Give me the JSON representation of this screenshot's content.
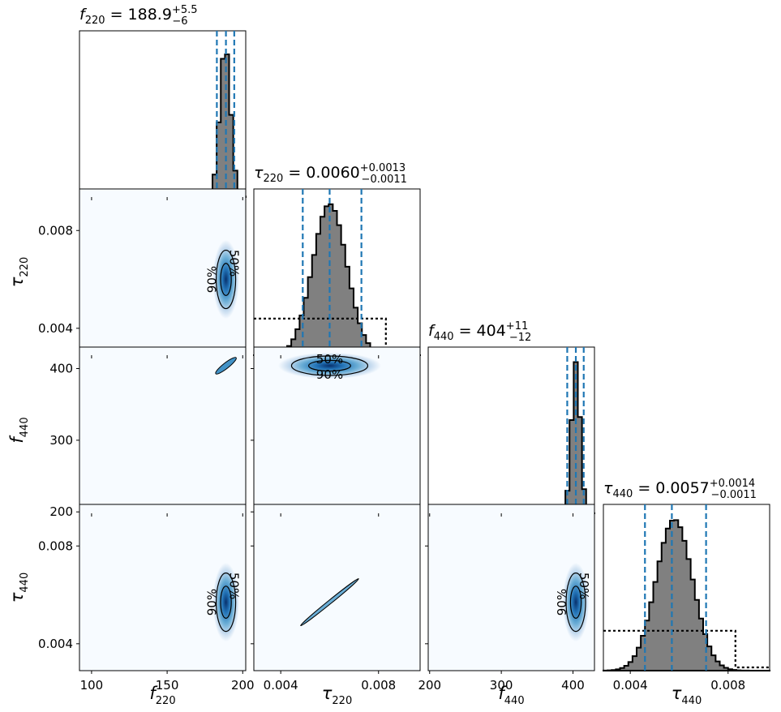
{
  "chart_data": {
    "type": "corner",
    "parameters": [
      {
        "key": "f220",
        "symbol": "f",
        "subscript": "220",
        "range": [
          92,
          202
        ],
        "ticks": [
          "100",
          "150",
          "200"
        ],
        "tick_values": [
          100,
          150,
          200
        ],
        "summary": {
          "median": "188.9",
          "plus": "+5.5",
          "minus": "−6"
        },
        "quantiles": [
          182.9,
          188.9,
          194.4
        ]
      },
      {
        "key": "tau220",
        "symbol": "τ",
        "subscript": "220",
        "range": [
          0.0029,
          0.0097
        ],
        "ticks": [
          "0.004",
          "0.008"
        ],
        "tick_values": [
          0.004,
          0.008
        ],
        "summary": {
          "median": "0.0060",
          "plus": "+0.0013",
          "minus": "−0.0011"
        },
        "quantiles": [
          0.0049,
          0.006,
          0.0073
        ]
      },
      {
        "key": "f440",
        "symbol": "f",
        "subscript": "440",
        "range": [
          198,
          430
        ],
        "ticks": [
          "200",
          "300",
          "400"
        ],
        "tick_values": [
          200,
          300,
          400
        ],
        "summary": {
          "median": "404",
          "plus": "+11",
          "minus": "−12"
        },
        "quantiles": [
          392,
          404,
          415
        ]
      },
      {
        "key": "tau440",
        "symbol": "τ",
        "subscript": "440",
        "range": [
          0.0029,
          0.0097
        ],
        "ticks": [
          "0.004",
          "0.008"
        ],
        "tick_values": [
          0.004,
          0.008
        ],
        "summary": {
          "median": "0.0057",
          "plus": "+0.0014",
          "minus": "−0.0011"
        },
        "quantiles": [
          0.0046,
          0.0057,
          0.0071
        ]
      }
    ],
    "diagonal_histograms": [
      {
        "param": "f220",
        "posterior": {
          "mean": 188.4,
          "sd": 3.6
        },
        "prior_level": 0.036,
        "prior_range": [
          92,
          198
        ]
      },
      {
        "param": "tau220",
        "posterior": {
          "mean": 0.006,
          "sd": 0.0007
        },
        "prior_level": 0.22,
        "prior_range": [
          0.0029,
          0.0083
        ]
      },
      {
        "param": "f440",
        "posterior": {
          "mean": 404,
          "sd": 6
        },
        "prior_level": 0.038,
        "prior_range": [
          198,
          420
        ]
      },
      {
        "param": "tau440",
        "posterior": {
          "mean": 0.0058,
          "sd": 0.00075
        },
        "prior_level": 0.24,
        "prior_range": [
          0.0029,
          0.0083
        ]
      }
    ],
    "contour_levels": [
      "50%",
      "90%"
    ],
    "colors": {
      "posterior_fill": "#808080",
      "quantile_lines": "#1f77b4",
      "density": "#08306b",
      "contour": "#000000"
    }
  }
}
